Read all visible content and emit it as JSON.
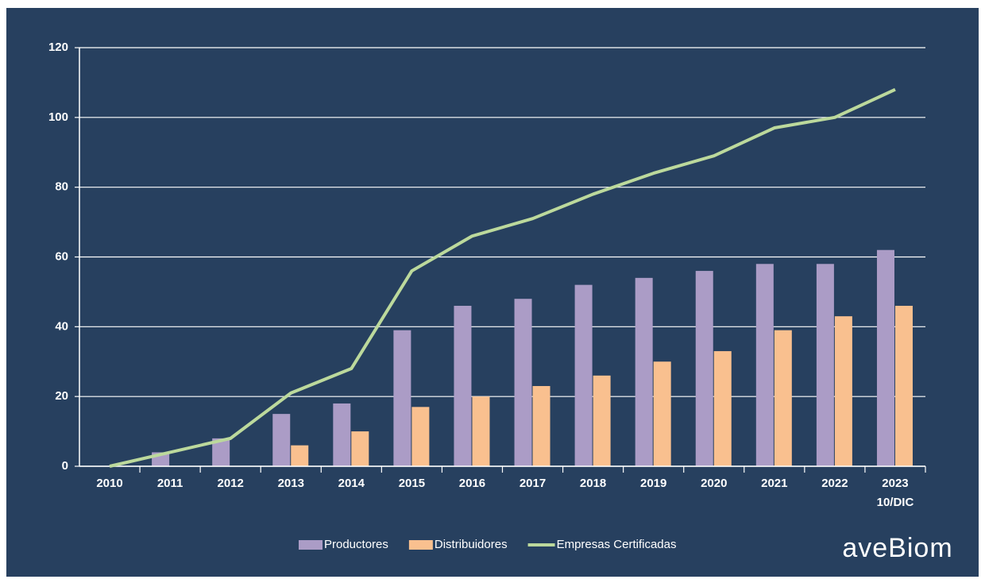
{
  "chart_data": {
    "type": "bar",
    "categories": [
      "2010",
      "2011",
      "2012",
      "2013",
      "2014",
      "2015",
      "2016",
      "2017",
      "2018",
      "2019",
      "2020",
      "2021",
      "2022",
      "2023"
    ],
    "category_note": "10/DIC",
    "series": [
      {
        "name": "Productores",
        "type": "bar",
        "color": "#ab9cc6",
        "values": [
          0,
          4,
          8,
          15,
          18,
          39,
          46,
          48,
          52,
          54,
          56,
          58,
          58,
          62
        ]
      },
      {
        "name": "Distribuidores",
        "type": "bar",
        "color": "#f9c08f",
        "values": [
          0,
          0,
          0,
          6,
          10,
          17,
          20,
          23,
          26,
          30,
          33,
          39,
          43,
          46
        ]
      },
      {
        "name": "Empresas Certificadas",
        "type": "line",
        "color": "#bcd99c",
        "values": [
          0,
          4,
          8,
          21,
          28,
          56,
          66,
          71,
          78,
          84,
          89,
          97,
          100,
          108
        ]
      }
    ],
    "ylim": [
      0,
      120
    ],
    "yticks": [
      0,
      20,
      40,
      60,
      80,
      100,
      120
    ],
    "grid": true,
    "legend": "bottom",
    "logo": "aveBiom"
  }
}
